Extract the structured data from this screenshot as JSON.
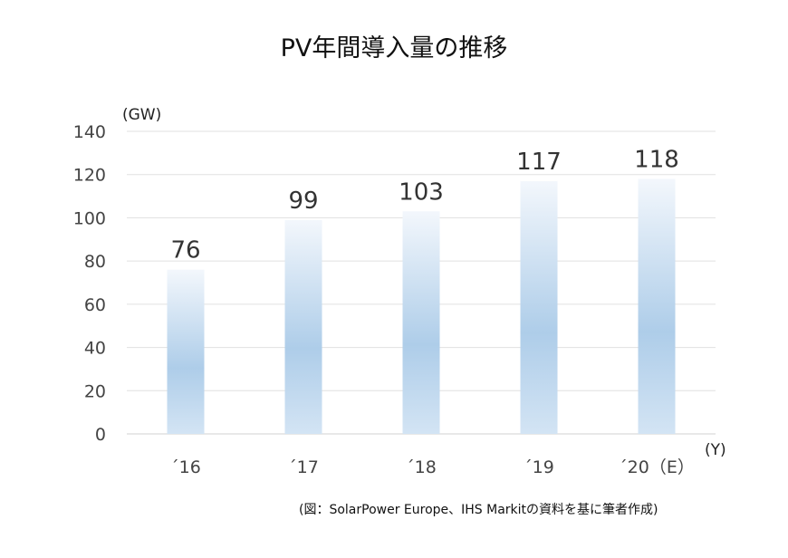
{
  "chart_data": {
    "type": "bar",
    "title": "PV年間導入量の推移",
    "ylabel": "(GW)",
    "xlabel": "(Y)",
    "categories": [
      "´16",
      "´17",
      "´18",
      "´19",
      "´20（E）"
    ],
    "values": [
      76,
      99,
      103,
      117,
      118
    ],
    "data_labels": [
      "76",
      "99",
      "103",
      "117",
      "118"
    ],
    "ylim": [
      0,
      140
    ],
    "yticks": [
      0,
      20,
      40,
      60,
      80,
      100,
      120,
      140
    ],
    "grid": true,
    "bar_color_light": "#f3f7fc",
    "bar_color_dark": "#aecde9",
    "source": "(図：SolarPower Europe、IHS Markitの資料を基に筆者作成)"
  }
}
